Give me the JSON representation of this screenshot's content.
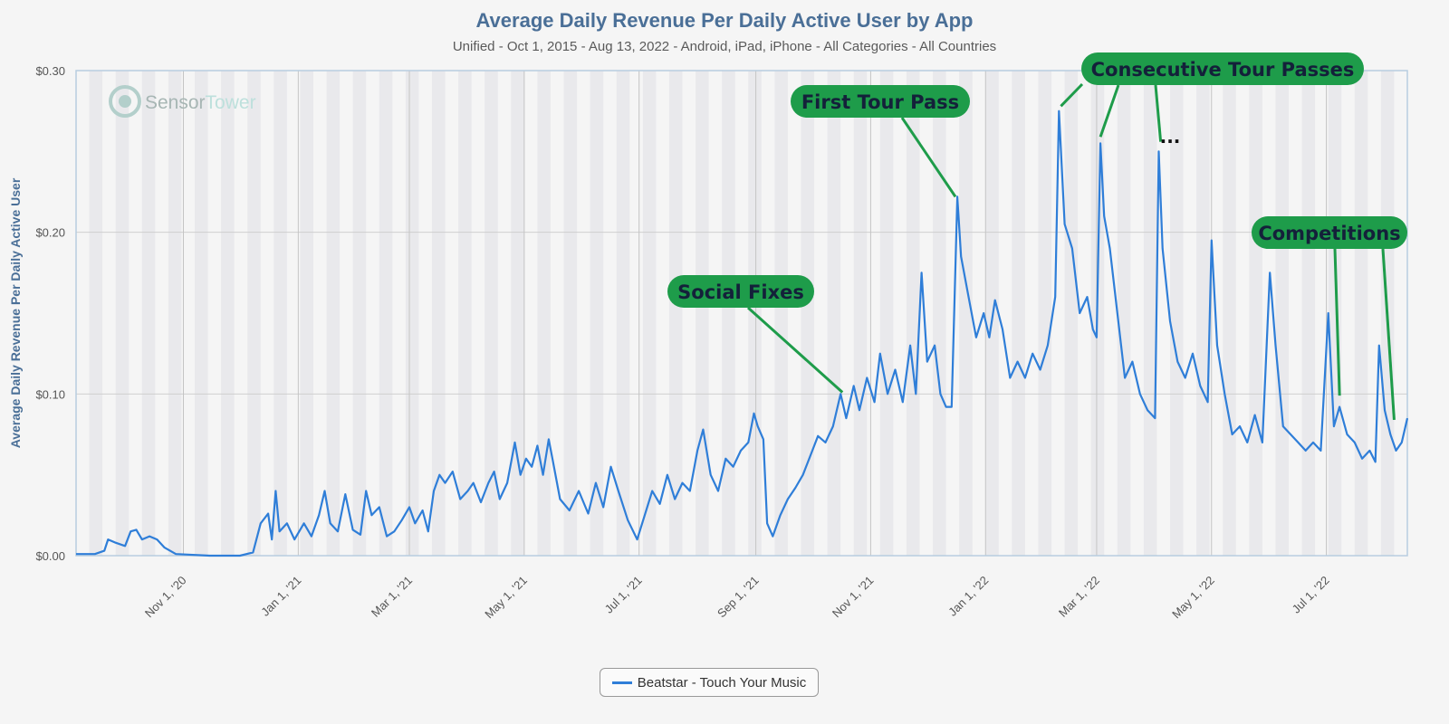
{
  "title": "Average Daily Revenue Per Daily Active User by App",
  "subtitle": "Unified - Oct 1, 2015 - Aug 13, 2022 - Android, iPad, iPhone - All Categories - All Countries",
  "watermark": {
    "brand": "Sensor",
    "brand2": "Tower"
  },
  "colors": {
    "line": "#2f7ed8",
    "callout": "#1e9c4a",
    "callout_text": "#14203a",
    "title": "#4a6f97"
  },
  "chart_data": {
    "type": "line",
    "ylabel": "Average Daily Revenue Per Daily Active User",
    "xlabel": "",
    "ylim": [
      0,
      0.3
    ],
    "xlim": [
      "2020-09-05",
      "2022-08-13"
    ],
    "yticks": [
      {
        "value": 0,
        "label": "$0.00"
      },
      {
        "value": 0.1,
        "label": "$0.10"
      },
      {
        "value": 0.2,
        "label": "$0.20"
      },
      {
        "value": 0.3,
        "label": "$0.30"
      }
    ],
    "xticks": [
      {
        "date": "2020-11-01",
        "label": "Nov 1, '20"
      },
      {
        "date": "2021-01-01",
        "label": "Jan 1, '21"
      },
      {
        "date": "2021-03-01",
        "label": "Mar 1, '21"
      },
      {
        "date": "2021-05-01",
        "label": "May 1, '21"
      },
      {
        "date": "2021-07-01",
        "label": "Jul 1, '21"
      },
      {
        "date": "2021-09-01",
        "label": "Sep 1, '21"
      },
      {
        "date": "2021-11-01",
        "label": "Nov 1, '21"
      },
      {
        "date": "2022-01-01",
        "label": "Jan 1, '22"
      },
      {
        "date": "2022-03-01",
        "label": "Mar 1, '22"
      },
      {
        "date": "2022-05-01",
        "label": "May 1, '22"
      },
      {
        "date": "2022-07-01",
        "label": "Jul 1, '22"
      }
    ],
    "legend_position": "bottom",
    "series": [
      {
        "name": "Beatstar - Touch Your Music",
        "points": [
          [
            "2020-09-05",
            0.001
          ],
          [
            "2020-09-15",
            0.001
          ],
          [
            "2020-09-20",
            0.003
          ],
          [
            "2020-09-22",
            0.01
          ],
          [
            "2020-09-26",
            0.008
          ],
          [
            "2020-10-01",
            0.006
          ],
          [
            "2020-10-04",
            0.015
          ],
          [
            "2020-10-07",
            0.016
          ],
          [
            "2020-10-10",
            0.01
          ],
          [
            "2020-10-14",
            0.012
          ],
          [
            "2020-10-18",
            0.01
          ],
          [
            "2020-10-22",
            0.005
          ],
          [
            "2020-10-28",
            0.001
          ],
          [
            "2020-11-15",
            0.0
          ],
          [
            "2020-12-01",
            0.0
          ],
          [
            "2020-12-08",
            0.002
          ],
          [
            "2020-12-12",
            0.02
          ],
          [
            "2020-12-16",
            0.026
          ],
          [
            "2020-12-18",
            0.01
          ],
          [
            "2020-12-20",
            0.04
          ],
          [
            "2020-12-22",
            0.015
          ],
          [
            "2020-12-26",
            0.02
          ],
          [
            "2020-12-30",
            0.01
          ],
          [
            "2021-01-04",
            0.02
          ],
          [
            "2021-01-08",
            0.012
          ],
          [
            "2021-01-12",
            0.025
          ],
          [
            "2021-01-15",
            0.04
          ],
          [
            "2021-01-18",
            0.02
          ],
          [
            "2021-01-22",
            0.015
          ],
          [
            "2021-01-26",
            0.038
          ],
          [
            "2021-01-30",
            0.016
          ],
          [
            "2021-02-03",
            0.013
          ],
          [
            "2021-02-06",
            0.04
          ],
          [
            "2021-02-09",
            0.025
          ],
          [
            "2021-02-13",
            0.03
          ],
          [
            "2021-02-17",
            0.012
          ],
          [
            "2021-02-21",
            0.015
          ],
          [
            "2021-02-25",
            0.022
          ],
          [
            "2021-03-01",
            0.03
          ],
          [
            "2021-03-04",
            0.02
          ],
          [
            "2021-03-08",
            0.028
          ],
          [
            "2021-03-11",
            0.015
          ],
          [
            "2021-03-14",
            0.04
          ],
          [
            "2021-03-17",
            0.05
          ],
          [
            "2021-03-20",
            0.045
          ],
          [
            "2021-03-24",
            0.052
          ],
          [
            "2021-03-28",
            0.035
          ],
          [
            "2021-04-01",
            0.04
          ],
          [
            "2021-04-04",
            0.045
          ],
          [
            "2021-04-08",
            0.033
          ],
          [
            "2021-04-12",
            0.045
          ],
          [
            "2021-04-15",
            0.052
          ],
          [
            "2021-04-18",
            0.035
          ],
          [
            "2021-04-22",
            0.045
          ],
          [
            "2021-04-26",
            0.07
          ],
          [
            "2021-04-29",
            0.05
          ],
          [
            "2021-05-02",
            0.06
          ],
          [
            "2021-05-05",
            0.055
          ],
          [
            "2021-05-08",
            0.068
          ],
          [
            "2021-05-11",
            0.05
          ],
          [
            "2021-05-14",
            0.072
          ],
          [
            "2021-05-16",
            0.06
          ],
          [
            "2021-05-20",
            0.035
          ],
          [
            "2021-05-25",
            0.028
          ],
          [
            "2021-05-30",
            0.04
          ],
          [
            "2021-06-04",
            0.026
          ],
          [
            "2021-06-08",
            0.045
          ],
          [
            "2021-06-12",
            0.03
          ],
          [
            "2021-06-16",
            0.055
          ],
          [
            "2021-06-20",
            0.04
          ],
          [
            "2021-06-25",
            0.022
          ],
          [
            "2021-06-30",
            0.01
          ],
          [
            "2021-07-04",
            0.025
          ],
          [
            "2021-07-08",
            0.04
          ],
          [
            "2021-07-12",
            0.032
          ],
          [
            "2021-07-16",
            0.05
          ],
          [
            "2021-07-20",
            0.035
          ],
          [
            "2021-07-24",
            0.045
          ],
          [
            "2021-07-28",
            0.04
          ],
          [
            "2021-08-01",
            0.065
          ],
          [
            "2021-08-04",
            0.078
          ],
          [
            "2021-08-08",
            0.05
          ],
          [
            "2021-08-12",
            0.04
          ],
          [
            "2021-08-16",
            0.06
          ],
          [
            "2021-08-20",
            0.055
          ],
          [
            "2021-08-24",
            0.065
          ],
          [
            "2021-08-28",
            0.07
          ],
          [
            "2021-08-31",
            0.088
          ],
          [
            "2021-09-02",
            0.08
          ],
          [
            "2021-09-05",
            0.072
          ],
          [
            "2021-09-07",
            0.02
          ],
          [
            "2021-09-10",
            0.012
          ],
          [
            "2021-09-14",
            0.025
          ],
          [
            "2021-09-18",
            0.035
          ],
          [
            "2021-09-22",
            0.042
          ],
          [
            "2021-09-26",
            0.05
          ],
          [
            "2021-10-01",
            0.065
          ],
          [
            "2021-10-04",
            0.074
          ],
          [
            "2021-10-08",
            0.07
          ],
          [
            "2021-10-12",
            0.08
          ],
          [
            "2021-10-16",
            0.1
          ],
          [
            "2021-10-19",
            0.085
          ],
          [
            "2021-10-23",
            0.105
          ],
          [
            "2021-10-26",
            0.09
          ],
          [
            "2021-10-30",
            0.11
          ],
          [
            "2021-11-03",
            0.095
          ],
          [
            "2021-11-06",
            0.125
          ],
          [
            "2021-11-10",
            0.1
          ],
          [
            "2021-11-14",
            0.115
          ],
          [
            "2021-11-18",
            0.095
          ],
          [
            "2021-11-22",
            0.13
          ],
          [
            "2021-11-25",
            0.1
          ],
          [
            "2021-11-28",
            0.175
          ],
          [
            "2021-12-01",
            0.12
          ],
          [
            "2021-12-05",
            0.13
          ],
          [
            "2021-12-08",
            0.1
          ],
          [
            "2021-12-11",
            0.092
          ],
          [
            "2021-12-14",
            0.092
          ],
          [
            "2021-12-17",
            0.222
          ],
          [
            "2021-12-19",
            0.185
          ],
          [
            "2021-12-23",
            0.16
          ],
          [
            "2021-12-27",
            0.135
          ],
          [
            "2021-12-31",
            0.15
          ],
          [
            "2022-01-03",
            0.135
          ],
          [
            "2022-01-06",
            0.158
          ],
          [
            "2022-01-10",
            0.14
          ],
          [
            "2022-01-14",
            0.11
          ],
          [
            "2022-01-18",
            0.12
          ],
          [
            "2022-01-22",
            0.11
          ],
          [
            "2022-01-26",
            0.125
          ],
          [
            "2022-01-30",
            0.115
          ],
          [
            "2022-02-03",
            0.13
          ],
          [
            "2022-02-07",
            0.16
          ],
          [
            "2022-02-09",
            0.275
          ],
          [
            "2022-02-12",
            0.205
          ],
          [
            "2022-02-16",
            0.19
          ],
          [
            "2022-02-20",
            0.15
          ],
          [
            "2022-02-24",
            0.16
          ],
          [
            "2022-02-27",
            0.14
          ],
          [
            "2022-03-01",
            0.135
          ],
          [
            "2022-03-03",
            0.255
          ],
          [
            "2022-03-05",
            0.21
          ],
          [
            "2022-03-08",
            0.19
          ],
          [
            "2022-03-12",
            0.15
          ],
          [
            "2022-03-16",
            0.11
          ],
          [
            "2022-03-20",
            0.12
          ],
          [
            "2022-03-24",
            0.1
          ],
          [
            "2022-03-28",
            0.09
          ],
          [
            "2022-04-01",
            0.085
          ],
          [
            "2022-04-03",
            0.25
          ],
          [
            "2022-04-05",
            0.19
          ],
          [
            "2022-04-09",
            0.145
          ],
          [
            "2022-04-13",
            0.12
          ],
          [
            "2022-04-17",
            0.11
          ],
          [
            "2022-04-21",
            0.125
          ],
          [
            "2022-04-25",
            0.105
          ],
          [
            "2022-04-29",
            0.095
          ],
          [
            "2022-05-01",
            0.195
          ],
          [
            "2022-05-04",
            0.13
          ],
          [
            "2022-05-08",
            0.1
          ],
          [
            "2022-05-12",
            0.075
          ],
          [
            "2022-05-16",
            0.08
          ],
          [
            "2022-05-20",
            0.07
          ],
          [
            "2022-05-24",
            0.087
          ],
          [
            "2022-05-28",
            0.07
          ],
          [
            "2022-06-01",
            0.175
          ],
          [
            "2022-06-04",
            0.13
          ],
          [
            "2022-06-08",
            0.08
          ],
          [
            "2022-06-12",
            0.075
          ],
          [
            "2022-06-16",
            0.07
          ],
          [
            "2022-06-20",
            0.065
          ],
          [
            "2022-06-24",
            0.07
          ],
          [
            "2022-06-28",
            0.065
          ],
          [
            "2022-07-02",
            0.15
          ],
          [
            "2022-07-05",
            0.08
          ],
          [
            "2022-07-08",
            0.092
          ],
          [
            "2022-07-12",
            0.075
          ],
          [
            "2022-07-16",
            0.07
          ],
          [
            "2022-07-20",
            0.06
          ],
          [
            "2022-07-24",
            0.065
          ],
          [
            "2022-07-27",
            0.058
          ],
          [
            "2022-07-29",
            0.13
          ],
          [
            "2022-08-01",
            0.09
          ],
          [
            "2022-08-04",
            0.075
          ],
          [
            "2022-08-07",
            0.065
          ],
          [
            "2022-08-10",
            0.07
          ],
          [
            "2022-08-13",
            0.085
          ]
        ]
      }
    ],
    "annotations": [
      {
        "label": "Social Fixes",
        "target": [
          "2021-10-17",
          0.101
        ]
      },
      {
        "label": "First Tour Pass",
        "target": [
          "2021-12-16",
          0.222
        ]
      },
      {
        "label": "Consecutive Tour Passes",
        "targets": [
          [
            "2022-02-10",
            0.278
          ],
          [
            "2022-03-03",
            0.259
          ],
          [
            "2022-04-04",
            0.256
          ]
        ],
        "ellipsis": "..."
      },
      {
        "label": "Competitions",
        "targets": [
          [
            "2022-07-08",
            0.099
          ],
          [
            "2022-08-06",
            0.084
          ]
        ]
      }
    ]
  }
}
